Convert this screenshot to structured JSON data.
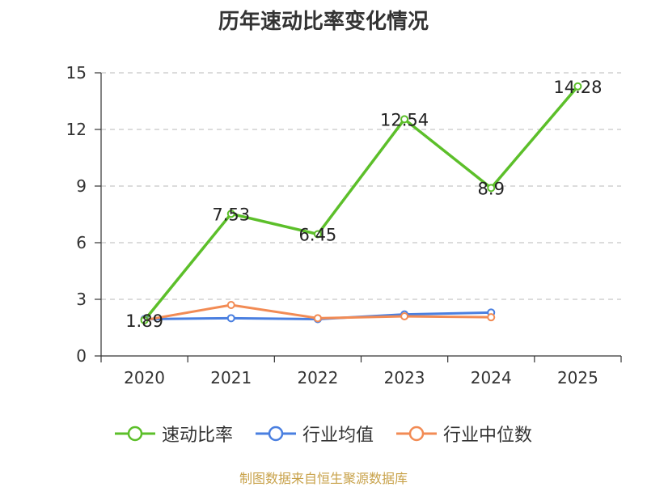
{
  "chart_data": {
    "type": "line",
    "title": "历年速动比率变化情况",
    "categories": [
      "2020",
      "2021",
      "2022",
      "2023",
      "2024",
      "2025"
    ],
    "y_ticks": [
      "0",
      "3",
      "6",
      "9",
      "12",
      "15"
    ],
    "ylim": [
      0,
      15
    ],
    "grid": "horizontal dashed",
    "legend_position": "bottom",
    "series": [
      {
        "name": "速动比率",
        "color": "#5cbf2a",
        "values": [
          1.89,
          7.53,
          6.45,
          12.54,
          8.9,
          14.28
        ],
        "labels": [
          "1.89",
          "7.53",
          "6.45",
          "12.54",
          "8.9",
          "14.28"
        ]
      },
      {
        "name": "行业均值",
        "color": "#4a7fe0",
        "values": [
          1.95,
          2.0,
          1.95,
          2.2,
          2.3,
          null
        ]
      },
      {
        "name": "行业中位数",
        "color": "#f28b54",
        "values": [
          1.9,
          2.7,
          2.0,
          2.1,
          2.05,
          null
        ]
      }
    ]
  },
  "source_text": "制图数据来自恒生聚源数据库"
}
